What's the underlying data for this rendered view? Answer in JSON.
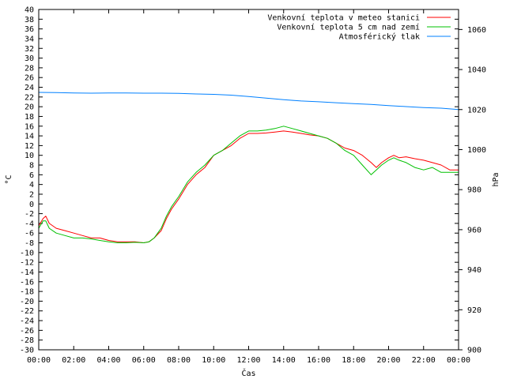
{
  "chart_data": {
    "type": "line",
    "title": "",
    "xlabel": "Čas",
    "ylabel": "°C",
    "y2label": "hPa",
    "x_ticks": [
      "00:00",
      "02:00",
      "04:00",
      "06:00",
      "08:00",
      "10:00",
      "12:00",
      "14:00",
      "16:00",
      "18:00",
      "20:00",
      "22:00",
      "00:00"
    ],
    "xlim": [
      0,
      24
    ],
    "ylim": [
      -30,
      40
    ],
    "y2lim": [
      900,
      1070
    ],
    "y_ticks": [
      -30,
      -28,
      -26,
      -24,
      -22,
      -20,
      -18,
      -16,
      -14,
      -12,
      -10,
      -8,
      -6,
      -4,
      -2,
      0,
      2,
      4,
      6,
      8,
      10,
      12,
      14,
      16,
      18,
      20,
      22,
      24,
      26,
      28,
      30,
      32,
      34,
      36,
      38,
      40
    ],
    "y2_ticks": [
      900,
      920,
      940,
      960,
      980,
      1000,
      1020,
      1040,
      1060
    ],
    "legend_position": "top-right",
    "grid": false,
    "series": [
      {
        "name": "Venkovní teplota v meteo stanici",
        "color": "#ff0000",
        "axis": "left",
        "x": [
          0,
          0.25,
          0.4,
          0.6,
          1,
          1.5,
          2,
          2.5,
          3,
          3.5,
          4,
          4.5,
          5,
          5.5,
          6,
          6.3,
          6.6,
          7,
          7.3,
          7.6,
          8,
          8.5,
          9,
          9.5,
          10,
          10.5,
          11,
          11.5,
          12,
          12.5,
          13,
          13.5,
          14,
          14.5,
          15,
          15.5,
          16,
          16.5,
          17,
          17.5,
          18,
          18.5,
          19,
          19.3,
          19.6,
          20,
          20.3,
          20.6,
          21,
          21.5,
          22,
          22.5,
          23,
          23.5,
          24
        ],
        "values": [
          -4.5,
          -3,
          -2.5,
          -4,
          -5,
          -5.5,
          -6,
          -6.5,
          -7,
          -7,
          -7.5,
          -7.8,
          -7.8,
          -7.8,
          -8,
          -7.8,
          -7,
          -5.5,
          -3,
          -1,
          1,
          4,
          6,
          7.5,
          10,
          11,
          12,
          13.5,
          14.5,
          14.5,
          14.6,
          14.8,
          15,
          14.8,
          14.5,
          14.2,
          14,
          13.5,
          12.5,
          11.5,
          11,
          10,
          8.5,
          7.5,
          8.5,
          9.5,
          10,
          9.5,
          9.7,
          9.3,
          9,
          8.5,
          8,
          7,
          7
        ]
      },
      {
        "name": "Venkovní teplota 5 cm nad zemí",
        "color": "#00c000",
        "axis": "left",
        "x": [
          0,
          0.25,
          0.4,
          0.6,
          1,
          1.5,
          2,
          2.5,
          3,
          3.5,
          4,
          4.5,
          5,
          5.5,
          6,
          6.3,
          6.6,
          7,
          7.3,
          7.6,
          8,
          8.5,
          9,
          9.5,
          10,
          10.5,
          11,
          11.5,
          12,
          12.5,
          13,
          13.5,
          14,
          14.5,
          15,
          15.5,
          16,
          16.5,
          17,
          17.5,
          18,
          18.5,
          19,
          19.3,
          19.6,
          20,
          20.3,
          20.6,
          21,
          21.5,
          22,
          22.5,
          23,
          23.5,
          24
        ],
        "values": [
          -5,
          -3.5,
          -3.5,
          -5,
          -6,
          -6.5,
          -7,
          -7,
          -7.2,
          -7.5,
          -7.8,
          -8,
          -8,
          -7.9,
          -8,
          -7.8,
          -7,
          -5,
          -2.5,
          -0.5,
          1.5,
          4.5,
          6.5,
          8,
          10,
          11,
          12.5,
          14,
          15,
          15,
          15.2,
          15.5,
          16,
          15.5,
          15,
          14.5,
          14,
          13.5,
          12.5,
          11,
          10,
          8,
          6,
          7,
          8,
          9,
          9.5,
          9,
          8.5,
          7.5,
          7,
          7.5,
          6.5,
          6.5,
          6.5
        ]
      },
      {
        "name": "Atmosférický tlak",
        "color": "#0080ff",
        "axis": "right",
        "x": [
          0,
          1,
          2,
          3,
          4,
          5,
          6,
          7,
          8,
          9,
          10,
          11,
          12,
          13,
          14,
          15,
          16,
          17,
          18,
          19,
          20,
          21,
          22,
          23,
          24
        ],
        "values": [
          1028.6,
          1028.5,
          1028.3,
          1028.2,
          1028.3,
          1028.3,
          1028.2,
          1028.2,
          1028.1,
          1027.8,
          1027.6,
          1027.2,
          1026.5,
          1025.7,
          1024.9,
          1024.3,
          1023.9,
          1023.4,
          1023.0,
          1022.6,
          1022.0,
          1021.5,
          1021.0,
          1020.7,
          1020.0
        ]
      }
    ]
  }
}
